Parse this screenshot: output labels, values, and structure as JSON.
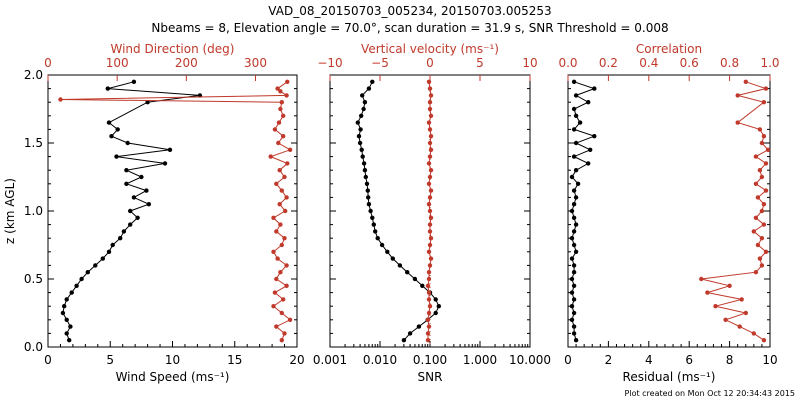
{
  "title": "VAD_08_20150703_005234, 20150703.005253",
  "subtitle": "Nbeams = 8, Elevation angle = 70.0°, scan duration = 31.9 s, SNR Threshold = 0.008",
  "footer": "Plot created on Mon Oct 12 20:34:43 2015",
  "colors": {
    "black_series": "#000000",
    "red_series": "#c0392b"
  },
  "chart_data": [
    {
      "type": "line",
      "panel": "wind",
      "ylabel": "z (km AGL)",
      "ylim": [
        0,
        2.0
      ],
      "yticks": [
        "0.0",
        "0.5",
        "1.0",
        "1.5",
        "2.0"
      ],
      "xlabel": "Wind Speed (ms⁻¹)",
      "xlim": [
        0,
        20
      ],
      "xticks": [
        "0",
        "5",
        "10",
        "15",
        "20"
      ],
      "top_label": "Wind Direction (deg)",
      "top_lim": [
        0,
        360
      ],
      "top_ticks": [
        "0",
        "100",
        "200",
        "300"
      ],
      "series": [
        {
          "name": "Wind Speed",
          "axis": "bottom",
          "color": "#000000",
          "z": [
            0.05,
            0.1,
            0.15,
            0.2,
            0.25,
            0.3,
            0.35,
            0.4,
            0.45,
            0.5,
            0.55,
            0.6,
            0.65,
            0.7,
            0.75,
            0.8,
            0.85,
            0.9,
            0.95,
            1.0,
            1.05,
            1.1,
            1.15,
            1.2,
            1.25,
            1.3,
            1.35,
            1.4,
            1.45,
            1.5,
            1.55,
            1.6,
            1.65,
            1.8,
            1.85,
            1.9,
            1.95
          ],
          "values": [
            1.7,
            1.5,
            1.8,
            1.5,
            1.2,
            1.3,
            1.5,
            1.9,
            2.3,
            2.7,
            3.2,
            3.8,
            4.4,
            4.9,
            5.2,
            5.8,
            6.1,
            6.6,
            7.2,
            6.6,
            8.1,
            6.9,
            7.9,
            6.3,
            7.5,
            6.3,
            9.4,
            5.5,
            9.8,
            6.4,
            5.1,
            5.6,
            4.9,
            8.0,
            12.2,
            4.8,
            6.9
          ]
        },
        {
          "name": "Wind Direction",
          "axis": "top",
          "color": "#c0392b",
          "z": [
            0.05,
            0.1,
            0.15,
            0.2,
            0.25,
            0.3,
            0.35,
            0.4,
            0.45,
            0.5,
            0.55,
            0.6,
            0.65,
            0.7,
            0.75,
            0.8,
            0.85,
            0.9,
            0.95,
            1.0,
            1.05,
            1.1,
            1.15,
            1.2,
            1.25,
            1.3,
            1.35,
            1.4,
            1.45,
            1.5,
            1.55,
            1.6,
            1.65,
            1.7,
            1.75,
            1.8,
            1.82,
            1.85,
            1.88,
            1.9,
            1.95
          ],
          "values": [
            338,
            342,
            330,
            350,
            338,
            326,
            340,
            328,
            345,
            330,
            336,
            345,
            332,
            326,
            338,
            342,
            330,
            336,
            326,
            343,
            335,
            345,
            338,
            330,
            342,
            335,
            346,
            322,
            350,
            333,
            340,
            328,
            334,
            340,
            336,
            338,
            18,
            345,
            336,
            332,
            346
          ]
        }
      ]
    },
    {
      "type": "line",
      "panel": "snr",
      "ylim": [
        0,
        2.0
      ],
      "xlabel": "SNR",
      "xscale": "log",
      "xlim": [
        0.001,
        10
      ],
      "xticks": [
        "0.001",
        "0.010",
        "0.100",
        "1.000",
        "10.000"
      ],
      "top_label": "Vertical velocity (ms⁻¹)",
      "top_lim": [
        -10,
        10
      ],
      "top_ticks": [
        "−10",
        "−5",
        "0",
        "5",
        "10"
      ],
      "series": [
        {
          "name": "SNR",
          "axis": "bottom",
          "color": "#000000",
          "z": [
            0.05,
            0.1,
            0.15,
            0.2,
            0.25,
            0.3,
            0.35,
            0.4,
            0.45,
            0.5,
            0.55,
            0.6,
            0.65,
            0.7,
            0.75,
            0.8,
            0.85,
            0.9,
            0.95,
            1.0,
            1.05,
            1.1,
            1.15,
            1.2,
            1.25,
            1.3,
            1.35,
            1.4,
            1.45,
            1.5,
            1.55,
            1.6,
            1.65,
            1.7,
            1.75,
            1.8,
            1.85,
            1.9,
            1.95
          ],
          "values": [
            0.03,
            0.04,
            0.06,
            0.09,
            0.13,
            0.15,
            0.13,
            0.1,
            0.07,
            0.05,
            0.035,
            0.025,
            0.018,
            0.014,
            0.011,
            0.009,
            0.008,
            0.0075,
            0.007,
            0.0065,
            0.006,
            0.0058,
            0.0057,
            0.0055,
            0.0052,
            0.005,
            0.0048,
            0.0045,
            0.0043,
            0.004,
            0.0038,
            0.0041,
            0.0036,
            0.0042,
            0.0047,
            0.005,
            0.0044,
            0.006,
            0.007
          ]
        },
        {
          "name": "Vertical velocity",
          "axis": "top",
          "color": "#c0392b",
          "z": [
            0.05,
            0.1,
            0.15,
            0.2,
            0.25,
            0.3,
            0.35,
            0.4,
            0.45,
            0.5,
            0.55,
            0.6,
            0.65,
            0.7,
            0.75,
            0.8,
            0.85,
            0.9,
            0.95,
            1.0,
            1.05,
            1.1,
            1.15,
            1.2,
            1.25,
            1.3,
            1.35,
            1.4,
            1.45,
            1.5,
            1.55,
            1.6,
            1.65,
            1.7,
            1.75,
            1.8,
            1.85,
            1.9,
            1.95
          ],
          "values": [
            -0.2,
            -0.2,
            -0.1,
            -0.2,
            -0.1,
            0.0,
            -0.1,
            -0.1,
            -0.2,
            -0.1,
            -0.1,
            0.0,
            0.1,
            -0.1,
            0.0,
            0.1,
            0.0,
            0.0,
            0.1,
            0.0,
            -0.1,
            0.0,
            0.1,
            -0.1,
            0.0,
            0.1,
            -0.1,
            0.0,
            0.1,
            0.0,
            0.1,
            0.0,
            -0.1,
            0.1,
            0.0,
            0.0,
            0.1,
            0.0,
            -0.1
          ]
        }
      ]
    },
    {
      "type": "line",
      "panel": "residual",
      "ylim": [
        0,
        2.0
      ],
      "xlabel": "Residual (ms⁻¹)",
      "xlim": [
        0,
        10
      ],
      "xticks": [
        "0",
        "2",
        "4",
        "6",
        "8",
        "10"
      ],
      "top_label": "Correlation",
      "top_lim": [
        0,
        1.0
      ],
      "top_ticks": [
        "0.0",
        "0.2",
        "0.4",
        "0.6",
        "0.8",
        "1.0"
      ],
      "series": [
        {
          "name": "Residual",
          "axis": "bottom",
          "color": "#000000",
          "z": [
            0.05,
            0.1,
            0.15,
            0.2,
            0.25,
            0.3,
            0.35,
            0.4,
            0.45,
            0.5,
            0.55,
            0.6,
            0.65,
            0.7,
            0.75,
            0.8,
            0.85,
            0.9,
            0.95,
            1.0,
            1.05,
            1.1,
            1.15,
            1.2,
            1.25,
            1.3,
            1.35,
            1.4,
            1.45,
            1.5,
            1.55,
            1.6,
            1.65,
            1.7,
            1.75,
            1.8,
            1.85,
            1.9,
            1.95
          ],
          "values": [
            0.4,
            0.3,
            0.3,
            0.2,
            0.3,
            0.2,
            0.3,
            0.2,
            0.3,
            0.2,
            0.3,
            0.3,
            0.2,
            0.4,
            0.3,
            0.2,
            0.3,
            0.4,
            0.3,
            0.2,
            0.3,
            0.4,
            0.3,
            0.5,
            0.2,
            0.4,
            1.0,
            0.3,
            1.1,
            0.4,
            1.3,
            0.3,
            0.6,
            0.4,
            0.3,
            1.0,
            0.4,
            1.3,
            0.3
          ]
        },
        {
          "name": "Correlation",
          "axis": "top",
          "color": "#c0392b",
          "z": [
            0.05,
            0.1,
            0.15,
            0.2,
            0.25,
            0.3,
            0.35,
            0.4,
            0.45,
            0.5,
            0.55,
            0.6,
            0.65,
            0.7,
            0.75,
            0.8,
            0.85,
            0.9,
            0.95,
            1.0,
            1.05,
            1.1,
            1.15,
            1.2,
            1.25,
            1.3,
            1.35,
            1.4,
            1.45,
            1.5,
            1.55,
            1.6,
            1.65,
            1.8,
            1.85,
            1.9,
            1.95
          ],
          "values": [
            0.97,
            0.92,
            0.85,
            0.78,
            0.88,
            0.73,
            0.86,
            0.69,
            0.8,
            0.66,
            0.93,
            0.96,
            0.95,
            0.98,
            0.94,
            0.96,
            0.92,
            0.97,
            0.93,
            0.96,
            0.97,
            0.94,
            0.98,
            0.93,
            0.96,
            0.95,
            0.98,
            0.93,
            0.99,
            0.96,
            0.97,
            0.95,
            0.84,
            0.97,
            0.84,
            0.98,
            0.88
          ]
        }
      ]
    }
  ]
}
